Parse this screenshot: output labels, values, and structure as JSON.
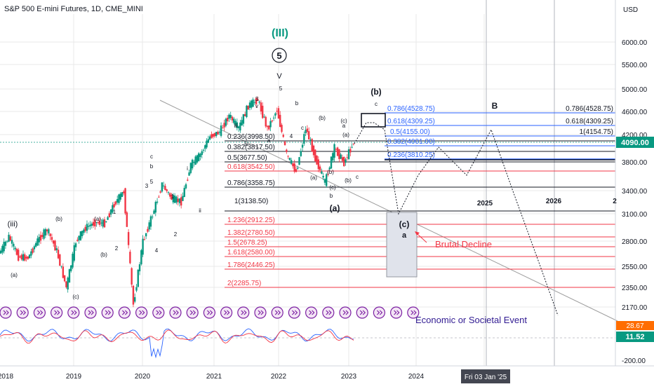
{
  "header": {
    "title": "S&P 500 E-mini Futures, 1D, CME_MINI"
  },
  "axis": {
    "currency": "USD",
    "price_ticks": [
      "6000.00",
      "5500.00",
      "5000.00",
      "4600.00",
      "4200.00",
      "3800.00",
      "3400.00",
      "3100.00",
      "2800.00",
      "2550.00",
      "2350.00",
      "2170.00"
    ],
    "indicator_ticks": [
      "-200.00"
    ],
    "current_price": "4090.00",
    "indicator_values": [
      "28.67",
      "11.52"
    ],
    "time_ticks": [
      "2018",
      "2019",
      "2020",
      "2021",
      "2022",
      "2023",
      "2024"
    ],
    "crosshair_date": "Fri 03 Jan '25",
    "inner_year_labels": [
      "2025",
      "2026",
      "2"
    ]
  },
  "colors": {
    "blue": "#2962ff",
    "red": "#f23645",
    "black": "#131722",
    "green": "#089981",
    "purple": "#7b1fa2",
    "grid": "#e8e8e8",
    "candle_up": "#089981",
    "candle_down": "#f23645"
  },
  "fib_black": [
    "0.236(3998.50)",
    "0.382(3817.50)",
    "0.5(3677.50)",
    "0.786(3358.75)",
    "1(3138.50)"
  ],
  "fib_red": [
    "0.618(3542.50)",
    "1.236(2912.25)",
    "1.382(2780.50)",
    "1.5(2678.25)",
    "1.618(2580.00)",
    "1.786(2446.25)",
    "2(2285.75)"
  ],
  "fib_blue": [
    "0.786(4528.75)",
    "0.618(4309.25)",
    "0.5(4155.00)",
    "0.382(4001.00)",
    "0.236(3810.25)"
  ],
  "fib_right": [
    "0.786(4528.75)",
    "0.618(4309.25)",
    "1(4154.75)"
  ],
  "wave_labels": {
    "cycle": "(III)",
    "circled": "5",
    "big_v": "V",
    "b_big": "(b)",
    "c_small": "c",
    "a_paren": "(a)",
    "c_paren": "(c)",
    "a_small": "a",
    "B": "B",
    "small": [
      "(iii)",
      "(a)",
      "(b)",
      "(c)",
      "(a)",
      "(b)",
      "1",
      "2",
      "b",
      "c",
      "5",
      "3",
      "4",
      "1",
      "2",
      "i",
      "ii",
      "iii",
      "3",
      "v",
      "5",
      "a",
      "b",
      "c",
      "(a)",
      "(b)",
      "(c)",
      "(b)",
      "(c)",
      "(a)",
      "(b)",
      "c",
      "b",
      "a",
      "iv",
      "4"
    ]
  },
  "annotations": {
    "brutal": "Brutal Decline",
    "event": "Economic or Societal Event"
  },
  "chart_data": {
    "type": "line",
    "title": "S&P 500 E-mini Futures, 1D, CME_MINI",
    "xlabel": "",
    "ylabel": "USD",
    "ylim": [
      1900,
      6700
    ],
    "log_scale": true,
    "x": [
      "2018-01",
      "2018-02",
      "2018-03",
      "2018-05",
      "2018-07",
      "2018-09",
      "2018-10",
      "2018-12",
      "2019-03",
      "2019-05",
      "2019-07",
      "2019-10",
      "2019-12",
      "2020-02",
      "2020-03",
      "2020-04",
      "2020-06",
      "2020-08",
      "2020-09",
      "2020-10",
      "2020-12",
      "2021-02",
      "2021-04",
      "2021-06",
      "2021-08",
      "2021-09",
      "2021-11",
      "2022-01",
      "2022-02",
      "2022-03",
      "2022-05",
      "2022-06",
      "2022-08",
      "2022-09",
      "2022-10",
      "2022-11",
      "2022-12",
      "2023-01"
    ],
    "series": [
      {
        "values": [
          2675,
          2850,
          2640,
          2630,
          2810,
          2930,
          2700,
          2350,
          2800,
          2950,
          3010,
          3000,
          3230,
          3390,
          2200,
          2800,
          3100,
          3480,
          3300,
          3260,
          3750,
          3900,
          4180,
          4250,
          4530,
          4310,
          4700,
          4810,
          4300,
          4630,
          3900,
          3650,
          4320,
          3850,
          3500,
          4000,
          3780,
          4090
        ]
      }
    ],
    "projection": {
      "path": [
        "(b) 4300",
        "(c) ~3000",
        "4155",
        "3700",
        "B 4300",
        "~2150"
      ]
    },
    "indicator": {
      "last_values": [
        28.67,
        11.52
      ]
    }
  }
}
